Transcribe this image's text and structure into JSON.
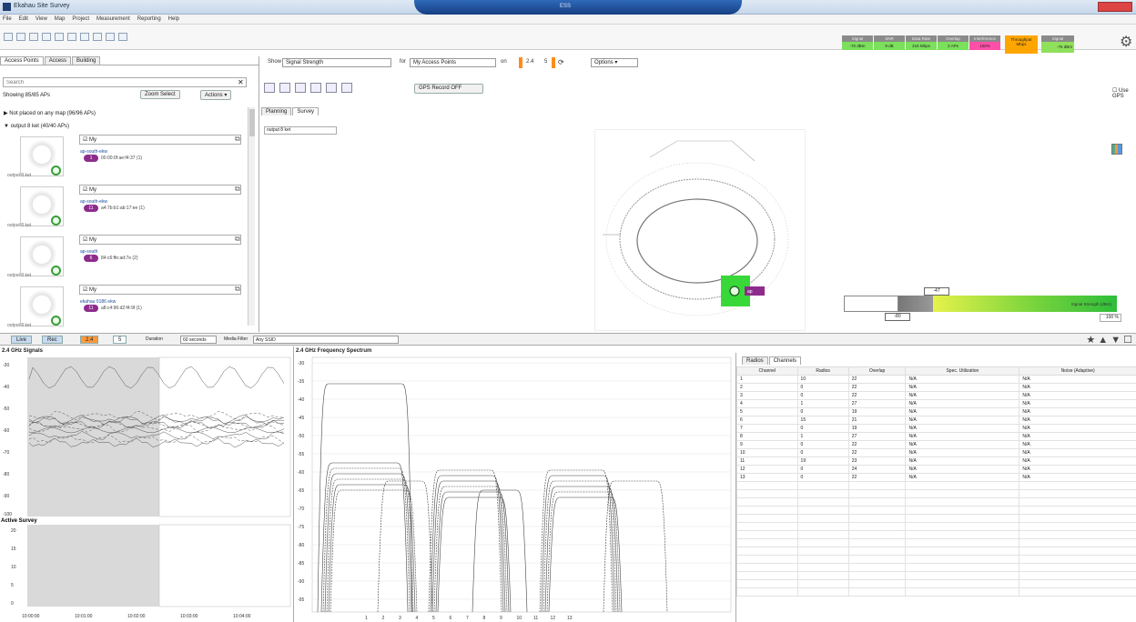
{
  "app": {
    "title": "Ekahau Site Survey",
    "hub_text": "ESS"
  },
  "menu": [
    "File",
    "Edit",
    "View",
    "Map",
    "Project",
    "Measurement",
    "Reporting",
    "Help"
  ],
  "stats": [
    {
      "label": "Signal",
      "value": "-70 dBm",
      "color": "#7be05b"
    },
    {
      "label": "SNR",
      "value": "9 dB",
      "color": "#7be05b"
    },
    {
      "label": "Data Rate",
      "value": "216 Mbps",
      "color": "#7be05b"
    },
    {
      "label": "Overlap",
      "value": "2 APs",
      "color": "#7be05b"
    },
    {
      "label": "Interference",
      "value": "100%",
      "color": "#ff4fa8"
    }
  ],
  "throughput": {
    "label": "Throughput",
    "value": "Mbps"
  },
  "signal_meter": {
    "label": "Signal",
    "value": "-75 dBm"
  },
  "left_tabs": [
    "Access Points",
    "Access",
    "Building"
  ],
  "search": {
    "placeholder": "Search"
  },
  "showing": "Showing 85/85 APs",
  "buttons": {
    "zoom_select": "Zoom Select",
    "actions": "Actions ▾"
  },
  "groups": {
    "not_placed": "Not placed on any map (96/96 APs)",
    "placed": "output 8 ket (40/40 APs)"
  },
  "aps": [
    {
      "location": "output 8 ket",
      "check": "My",
      "name": "ap-south-ekw",
      "channel": "1",
      "mac": "00:00:0f:ae:f4:37 (1)"
    },
    {
      "location": "output 8 ket",
      "check": "My",
      "name": "ap-south-ekw",
      "channel": "11",
      "mac": "a4:7b:b1:ab:17:ee (1)"
    },
    {
      "location": "output 8 ket",
      "check": "My",
      "name": "ap-south",
      "channel": "6",
      "mac": "84:c6:ffe:ad:7e (2)"
    },
    {
      "location": "output 8 ket",
      "check": "My",
      "name": "ekahau 0186 ekw",
      "channel": "11",
      "mac": "a8:c4:96:d2:f4:9f (1)"
    }
  ],
  "filters": {
    "show_label": "Show",
    "show_value": "Signal Strength",
    "for_label": "for",
    "for_value": "My Access Points",
    "on_label": "on",
    "band24": "2.4",
    "band5": "5",
    "options": "Options ▾"
  },
  "record": "GPS Record OFF",
  "use_gps": "Use GPS",
  "map_tabs": [
    "Planning",
    "Survey"
  ],
  "floor": "output 8 ket",
  "map_ap_label": "ap",
  "legend": {
    "text": "Signal Strength (dBm)",
    "marker_top": "-47",
    "marker_bottom": "-80",
    "zoom": "100 %"
  },
  "bottom_bar": {
    "live": "Live",
    "rec": "Rec",
    "band24": "2.4",
    "band5": "5",
    "duration_label": "Duration",
    "duration_value": "60 seconds",
    "macfilter_label": "Media Filter",
    "macfilter_value": "Any SSID"
  },
  "panels": {
    "signals": "2.4 GHz Signals",
    "survey": "Active Survey",
    "freq": "2.4 GHz Frequency Spectrum"
  },
  "signal_axis": [
    "-30",
    "-40",
    "-50",
    "-60",
    "-70",
    "-80",
    "-90",
    "-100"
  ],
  "survey_axis": [
    "20",
    "15",
    "10",
    "5",
    "0"
  ],
  "time_axis": [
    "10:00:00",
    "10:01:00",
    "10:02:00",
    "10:03:00",
    "10:04:00"
  ],
  "freq_axis": [
    "-30",
    "-35",
    "-40",
    "-45",
    "-50",
    "-55",
    "-60",
    "-65",
    "-70",
    "-75",
    "-80",
    "-85",
    "-90",
    "-95"
  ],
  "channels_axis": [
    "1",
    "2",
    "3",
    "4",
    "5",
    "6",
    "7",
    "8",
    "9",
    "10",
    "11",
    "12",
    "13"
  ],
  "table": {
    "tabs": [
      "Radios",
      "Channels"
    ],
    "headers": [
      "Channel",
      "Radios",
      "Overlap",
      "Spec. Utilization",
      "Noise (Adaptive)"
    ],
    "rows": [
      [
        "1",
        "10",
        "22",
        "N/A",
        "N/A"
      ],
      [
        "2",
        "0",
        "22",
        "N/A",
        "N/A"
      ],
      [
        "3",
        "0",
        "22",
        "N/A",
        "N/A"
      ],
      [
        "4",
        "1",
        "27",
        "N/A",
        "N/A"
      ],
      [
        "5",
        "0",
        "19",
        "N/A",
        "N/A"
      ],
      [
        "6",
        "15",
        "21",
        "N/A",
        "N/A"
      ],
      [
        "7",
        "0",
        "19",
        "N/A",
        "N/A"
      ],
      [
        "8",
        "1",
        "27",
        "N/A",
        "N/A"
      ],
      [
        "9",
        "0",
        "22",
        "N/A",
        "N/A"
      ],
      [
        "10",
        "0",
        "22",
        "N/A",
        "N/A"
      ],
      [
        "11",
        "19",
        "23",
        "N/A",
        "N/A"
      ],
      [
        "12",
        "0",
        "24",
        "N/A",
        "N/A"
      ],
      [
        "13",
        "0",
        "22",
        "N/A",
        "N/A"
      ]
    ]
  }
}
